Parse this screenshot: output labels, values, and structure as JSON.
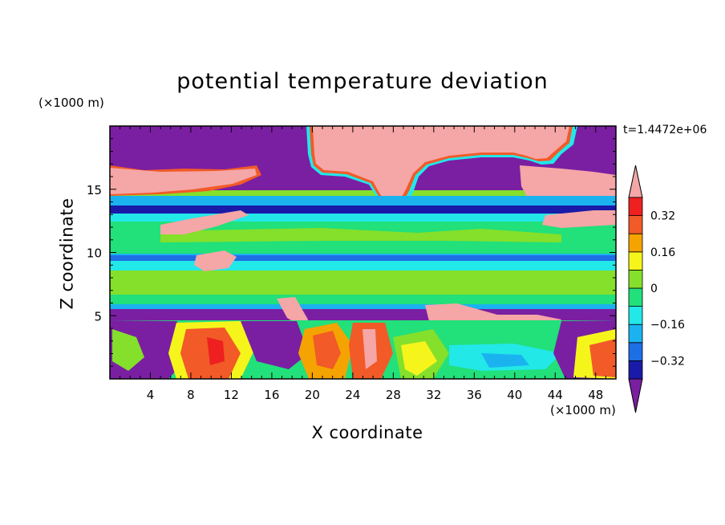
{
  "chart_data": {
    "type": "heatmap",
    "title": "potential temperature deviation",
    "xlabel": "X coordinate",
    "ylabel": "Z coordinate",
    "x_unit": "(×1000 m)",
    "y_unit": "(×1000 m)",
    "time_label": "t=1.4472e+06",
    "x_range": [
      0,
      50
    ],
    "y_range": [
      0,
      20
    ],
    "x_ticks": [
      4,
      8,
      12,
      16,
      20,
      24,
      28,
      32,
      36,
      40,
      44,
      48
    ],
    "y_ticks": [
      5,
      10,
      15
    ],
    "colorbar": {
      "levels": [
        -0.4,
        -0.32,
        -0.24,
        -0.16,
        -0.08,
        0,
        0.08,
        0.16,
        0.24,
        0.32,
        0.4
      ],
      "labeled_ticks": [
        "0.32",
        "0.16",
        "0",
        "−0.16",
        "−0.32"
      ],
      "labeled_values": [
        0.32,
        0.16,
        0,
        -0.16,
        -0.32
      ],
      "colors_low_to_high": [
        "#7a1fa2",
        "#1a1aa8",
        "#1d6fe5",
        "#1ab3f0",
        "#22e8e8",
        "#22e07a",
        "#84e02a",
        "#f5f51c",
        "#f5a300",
        "#f25a28",
        "#ee2020",
        "#f5a6a6"
      ],
      "extend": "both"
    },
    "field_description_rows_by_height": [
      {
        "z": [
          17,
          20
        ],
        "value": "mostly -0.4 (purple) with >0.4 (pink) blob from x 10 to 40"
      },
      {
        "z": [
          14.5,
          17
        ],
        "value": "pink >0.4 band x 0-16, pink blob x 20-30, purple below x 32-42"
      },
      {
        "z": [
          12,
          14.5
        ],
        "value": "dark blue / cyan bands around -0.3 to -0.1"
      },
      {
        "z": [
          10,
          12
        ],
        "value": "green about 0 to 0.08"
      },
      {
        "z": [
          9,
          10
        ],
        "value": "blue about -0.2"
      },
      {
        "z": [
          6,
          9
        ],
        "value": "green about 0 to 0.08"
      },
      {
        "z": [
          5,
          6
        ],
        "value": "dark blue / purple about -0.4"
      },
      {
        "z": [
          0,
          5
        ],
        "value": "mixed: purple, red/orange/yellow plumes, pink filaments"
      }
    ]
  }
}
